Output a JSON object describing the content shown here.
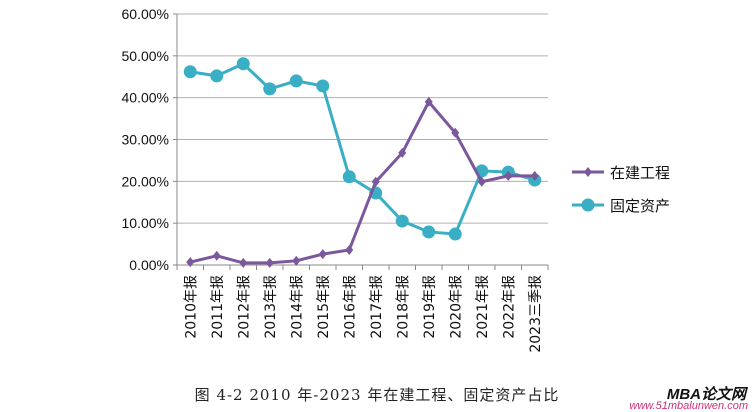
{
  "chart_data": {
    "type": "line",
    "categories": [
      "2010年报",
      "2011年报",
      "2012年报",
      "2013年报",
      "2014年报",
      "2015年报",
      "2016年报",
      "2017年报",
      "2018年报",
      "2019年报",
      "2020年报",
      "2021年报",
      "2022年报",
      "2023三季报"
    ],
    "ylim": [
      0,
      60
    ],
    "yticks": [
      "0.00%",
      "10.00%",
      "20.00%",
      "30.00%",
      "40.00%",
      "50.00%",
      "60.00%"
    ],
    "grid": true,
    "legend_placement": "right",
    "series": [
      {
        "name": "在建工程",
        "color": "#7b579c",
        "marker": "diamond",
        "values": [
          0.7,
          2.2,
          0.5,
          0.5,
          1.0,
          2.6,
          3.6,
          19.9,
          26.8,
          39.0,
          31.6,
          19.9,
          21.3,
          21.3
        ]
      },
      {
        "name": "固定资产",
        "color": "#3aaec4",
        "marker": "circle",
        "values": [
          46.2,
          45.2,
          48.1,
          42.1,
          44.0,
          42.8,
          21.1,
          17.2,
          10.5,
          7.9,
          7.4,
          22.5,
          22.2,
          20.3
        ]
      }
    ]
  },
  "caption": "图 4-2 2010 年-2023 年在建工程、固定资产占比",
  "watermark": {
    "title": "MBA论文网",
    "url": "www.51mbalunwen.com"
  }
}
